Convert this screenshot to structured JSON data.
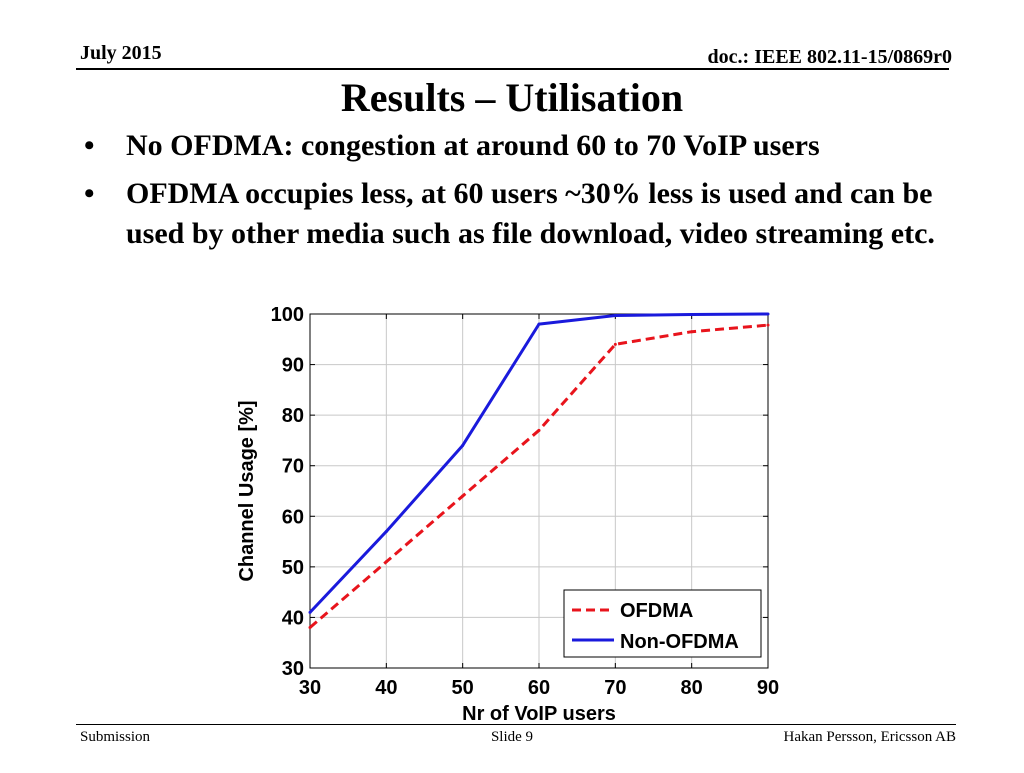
{
  "header": {
    "date": "July 2015",
    "doc_id": "doc.: IEEE 802.11-15/0869r0"
  },
  "slide": {
    "title": "Results – Utilisation",
    "bullets": [
      {
        "marker": "•",
        "text": "No OFDMA: congestion at around 60 to 70 VoIP users"
      },
      {
        "marker": "•",
        "text": "OFDMA occupies less, at 60 users  ~30% less is used and can be used by other media such as file download, video streaming etc."
      }
    ]
  },
  "footer": {
    "left": "Submission",
    "center": "Slide 9",
    "right": "Hakan Persson, Ericsson AB"
  },
  "chart_data": {
    "type": "line",
    "title": "",
    "xlabel": "Nr of VoIP users",
    "ylabel": "Channel Usage [%]",
    "x": [
      30,
      40,
      50,
      60,
      70,
      80,
      90
    ],
    "xlim": [
      30,
      90
    ],
    "ylim": [
      30,
      100
    ],
    "xticks": [
      30,
      40,
      50,
      60,
      70,
      80,
      90
    ],
    "yticks": [
      30,
      40,
      50,
      60,
      70,
      80,
      90,
      100
    ],
    "grid": true,
    "legend_position": "bottom-right",
    "series": [
      {
        "name": "OFDMA",
        "color": "#e8141c",
        "style": "dashed",
        "values": [
          38,
          51,
          64,
          77,
          94,
          96.5,
          97.8
        ]
      },
      {
        "name": "Non-OFDMA",
        "color": "#1a1adc",
        "style": "solid",
        "values": [
          41,
          57,
          74,
          98,
          99.7,
          99.9,
          100
        ]
      }
    ]
  }
}
